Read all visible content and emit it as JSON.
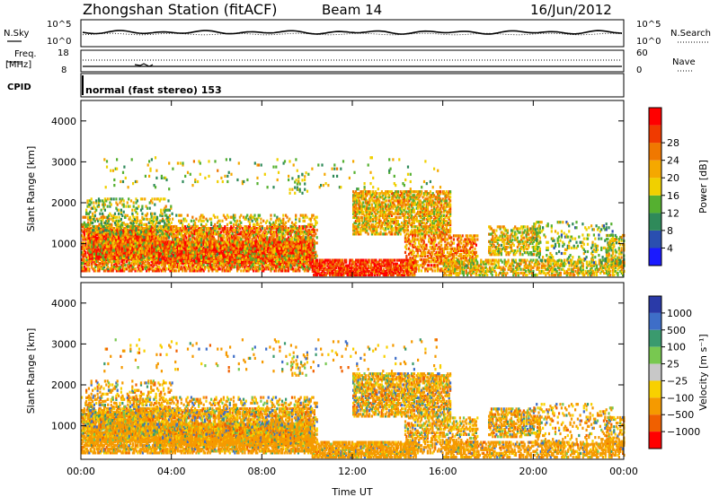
{
  "header": {
    "station": "Zhongshan Station (fitACF)",
    "beam": "Beam 14",
    "date": "16/Jun/2012"
  },
  "top_panels": {
    "nsky": {
      "label": "N.Sky",
      "ticks": [
        "10^5",
        "10^0"
      ]
    },
    "nsearch": {
      "label": "N.Search",
      "ticks": [
        "10^5",
        "10^0"
      ]
    },
    "freq": {
      "label_line1": "Freq.",
      "label_line2": "[MHz]",
      "ticks": [
        "18",
        "8"
      ]
    },
    "nave": {
      "label": "Nave",
      "ticks": [
        "60",
        "0"
      ]
    },
    "cpid": {
      "label": "CPID",
      "mode_text": "normal (fast stereo) 153"
    }
  },
  "chart_data": [
    {
      "type": "heatmap",
      "name": "power",
      "ylabel": "Slant Range [km]",
      "ylim": [
        180,
        4500
      ],
      "yticks": [
        1000,
        2000,
        3000,
        4000
      ],
      "xlabel": "Time UT",
      "xticks": [
        "00:00",
        "04:00",
        "08:00",
        "12:00",
        "16:00",
        "20:00",
        "00:00"
      ],
      "xlim_hours": [
        0,
        24
      ],
      "colorbar": {
        "label": "Power [dB]",
        "ticks": [
          "4",
          "8",
          "12",
          "16",
          "20",
          "24",
          "28"
        ],
        "colors": [
          "#1a1aff",
          "#2a4fb0",
          "#2f8a5a",
          "#55b030",
          "#f0d000",
          "#f5a800",
          "#f07800",
          "#f03a00",
          "#ff0000"
        ]
      }
    },
    {
      "type": "heatmap",
      "name": "velocity",
      "ylabel": "Slant Range [km]",
      "ylim": [
        180,
        4500
      ],
      "yticks": [
        1000,
        2000,
        3000,
        4000
      ],
      "xlabel": "Time UT",
      "xticks": [
        "00:00",
        "04:00",
        "08:00",
        "12:00",
        "16:00",
        "20:00",
        "00:00"
      ],
      "xlim_hours": [
        0,
        24
      ],
      "colorbar": {
        "label": "Velocity [m s⁻¹]",
        "ticks": [
          "1000",
          "500",
          "100",
          "25",
          "−25",
          "−100",
          "−500",
          "−1000"
        ],
        "colors": [
          "#2a3aa8",
          "#3e6ec8",
          "#3a9a6e",
          "#78c850",
          "#c8c8c8",
          "#f8d000",
          "#f59a00",
          "#f06000",
          "#ff0000"
        ]
      }
    }
  ]
}
